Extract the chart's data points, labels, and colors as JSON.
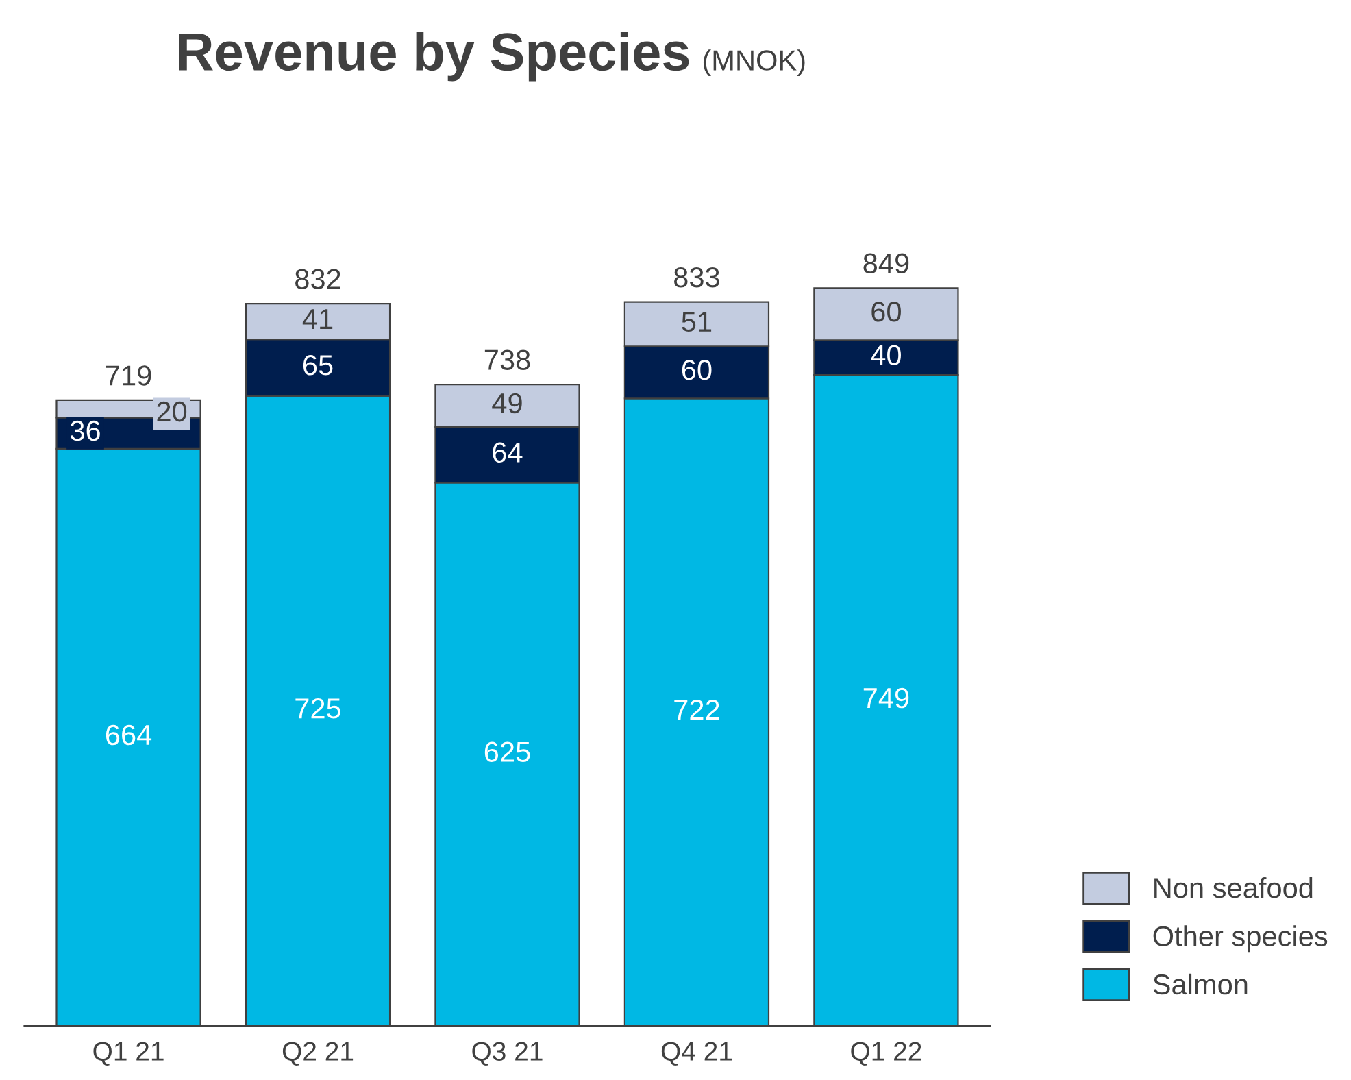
{
  "chart_data": {
    "type": "bar",
    "title": "Revenue by Species",
    "subtitle": "(MNOK)",
    "categories": [
      "Q1 21",
      "Q2 21",
      "Q3 21",
      "Q4 21",
      "Q1 22"
    ],
    "stacked": true,
    "series": [
      {
        "name": "Salmon",
        "color": "#00b8e4",
        "values": [
          664,
          725,
          625,
          722,
          749
        ]
      },
      {
        "name": "Other species",
        "color": "#001e4e",
        "values": [
          36,
          65,
          64,
          60,
          40
        ]
      },
      {
        "name": "Non seafood",
        "color": "#c3cce0",
        "values": [
          20,
          41,
          49,
          51,
          60
        ]
      }
    ],
    "totals": [
      "719",
      "832",
      "738",
      "833",
      "849"
    ],
    "data_labels": true,
    "legend": "bottom right",
    "grid": false
  }
}
